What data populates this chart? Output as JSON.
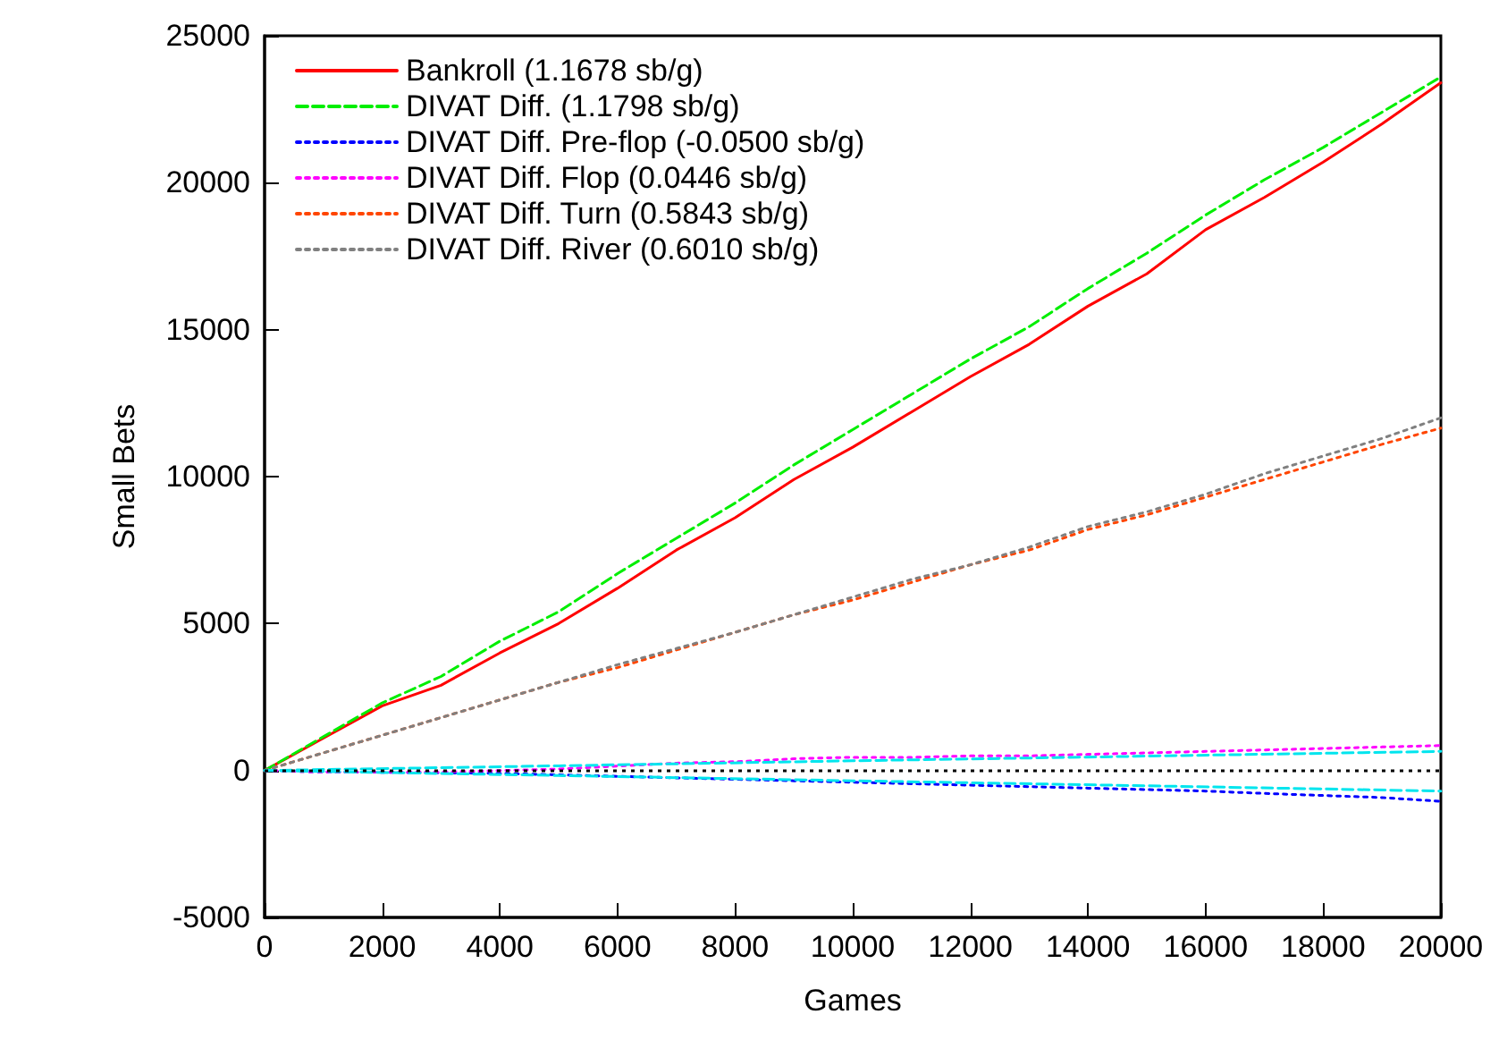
{
  "chart_data": {
    "type": "line",
    "xlabel": "Games",
    "ylabel": "Small Bets",
    "x": [
      0,
      1000,
      2000,
      3000,
      4000,
      5000,
      6000,
      7000,
      8000,
      9000,
      10000,
      11000,
      12000,
      13000,
      14000,
      15000,
      16000,
      17000,
      18000,
      19000,
      20000
    ],
    "series": [
      {
        "name": "Bankroll (1.1678 sb/g)",
        "color": "#ff0000",
        "line_style": "solid",
        "values": [
          0,
          1100,
          2200,
          2900,
          4000,
          5000,
          6200,
          7500,
          8600,
          9900,
          11000,
          12200,
          13400,
          14500,
          15800,
          16900,
          18400,
          19500,
          20700,
          22000,
          23400
        ]
      },
      {
        "name": "DIVAT Diff. (1.1798 sb/g)",
        "color": "#00ee00",
        "line_style": "dashed",
        "values": [
          0,
          1150,
          2300,
          3200,
          4400,
          5400,
          6700,
          7900,
          9100,
          10400,
          11600,
          12800,
          14000,
          15100,
          16400,
          17600,
          18900,
          20100,
          21200,
          22400,
          23600
        ]
      },
      {
        "name": "DIVAT Diff. Pre-flop (-0.0500 sb/g)",
        "color": "#0000ff",
        "line_style": "dotted",
        "values": [
          0,
          -50,
          -60,
          -80,
          -100,
          -150,
          -200,
          -250,
          -300,
          -350,
          -400,
          -450,
          -500,
          -550,
          -600,
          -650,
          -700,
          -780,
          -850,
          -920,
          -1050
        ]
      },
      {
        "name": "DIVAT Diff. Flop (0.0446 sb/g)",
        "color": "#ff00ff",
        "line_style": "dotted",
        "values": [
          0,
          -50,
          -50,
          -50,
          0,
          50,
          150,
          250,
          300,
          400,
          450,
          450,
          500,
          500,
          550,
          600,
          650,
          700,
          750,
          800,
          850
        ]
      },
      {
        "name": "DIVAT Diff. Turn (0.5843 sb/g)",
        "color": "#ff4500",
        "line_style": "dotted",
        "values": [
          0,
          600,
          1200,
          1800,
          2400,
          3000,
          3500,
          4100,
          4700,
          5300,
          5800,
          6400,
          7000,
          7500,
          8200,
          8700,
          9300,
          9900,
          10500,
          11100,
          11650
        ]
      },
      {
        "name": "DIVAT Diff. River (0.6010 sb/g)",
        "color": "#808080",
        "line_style": "dotted",
        "values": [
          0,
          600,
          1200,
          1800,
          2400,
          3000,
          3600,
          4150,
          4700,
          5300,
          5900,
          6500,
          7000,
          7600,
          8300,
          8800,
          9400,
          10100,
          10700,
          11300,
          12000
        ]
      },
      {
        "color": "#00e5ee",
        "line_style": "dashed",
        "x": [
          0,
          5000,
          10000,
          15000,
          20000
        ],
        "values": [
          0,
          160,
          330,
          490,
          650
        ]
      },
      {
        "color": "#00e5ee",
        "line_style": "dashed",
        "x": [
          0,
          5000,
          10000,
          15000,
          20000
        ],
        "values": [
          0,
          -170,
          -350,
          -520,
          -700
        ]
      }
    ],
    "xlim": [
      0,
      20000
    ],
    "xticks": [
      0,
      2000,
      4000,
      6000,
      8000,
      10000,
      12000,
      14000,
      16000,
      18000,
      20000
    ],
    "ylim": [
      -5000,
      25000
    ],
    "yticks": [
      -5000,
      0,
      5000,
      10000,
      15000,
      20000,
      25000
    ],
    "ref_lines": [
      {
        "axis": "y",
        "value": 0,
        "color": "#000000",
        "line_style": "dotted"
      }
    ],
    "grid": false,
    "legend": "top left",
    "marker": "none"
  }
}
